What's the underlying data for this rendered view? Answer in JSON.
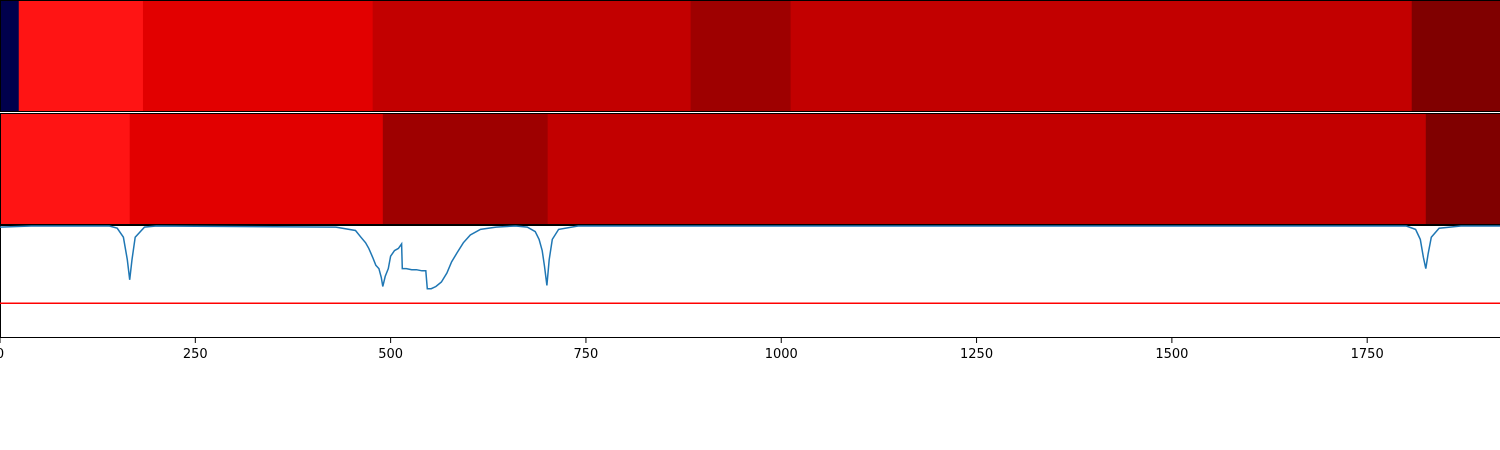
{
  "chart_data": {
    "type": "heatmap",
    "xlim": [
      0,
      1920
    ],
    "x_ticks": [
      0,
      250,
      500,
      750,
      1000,
      1250,
      1500,
      1750
    ],
    "tracks": [
      {
        "segments": [
          {
            "start": 0,
            "end": 24,
            "color": "#00004c"
          },
          {
            "start": 24,
            "end": 183,
            "color": "#ff1414"
          },
          {
            "start": 183,
            "end": 477,
            "color": "#e20000"
          },
          {
            "start": 477,
            "end": 884,
            "color": "#c20000"
          },
          {
            "start": 884,
            "end": 1012,
            "color": "#9e0000"
          },
          {
            "start": 1012,
            "end": 1807,
            "color": "#c20000"
          },
          {
            "start": 1807,
            "end": 1920,
            "color": "#800000"
          }
        ]
      },
      {
        "segments": [
          {
            "start": 0,
            "end": 166,
            "color": "#ff1414"
          },
          {
            "start": 166,
            "end": 490,
            "color": "#e20000"
          },
          {
            "start": 490,
            "end": 701,
            "color": "#9e0000"
          },
          {
            "start": 701,
            "end": 1825,
            "color": "#c20000"
          },
          {
            "start": 1825,
            "end": 1920,
            "color": "#800000"
          }
        ]
      }
    ],
    "line_panel": {
      "ylim": [
        0,
        1
      ],
      "threshold": 0.31,
      "threshold_color": "#ff0000",
      "line_color": "#1f77b4",
      "points": [
        [
          0,
          0.99
        ],
        [
          40,
          1.0
        ],
        [
          140,
          1.0
        ],
        [
          150,
          0.98
        ],
        [
          158,
          0.9
        ],
        [
          163,
          0.7
        ],
        [
          166,
          0.52
        ],
        [
          169,
          0.7
        ],
        [
          173,
          0.9
        ],
        [
          185,
          0.99
        ],
        [
          200,
          1.0
        ],
        [
          430,
          0.99
        ],
        [
          455,
          0.96
        ],
        [
          462,
          0.9
        ],
        [
          468,
          0.85
        ],
        [
          472,
          0.8
        ],
        [
          477,
          0.72
        ],
        [
          481,
          0.65
        ],
        [
          485,
          0.62
        ],
        [
          488,
          0.54
        ],
        [
          490,
          0.46
        ],
        [
          493,
          0.55
        ],
        [
          497,
          0.62
        ],
        [
          500,
          0.73
        ],
        [
          505,
          0.78
        ],
        [
          510,
          0.8
        ],
        [
          512,
          0.82
        ],
        [
          514,
          0.84
        ],
        [
          515,
          0.62
        ],
        [
          520,
          0.62
        ],
        [
          527,
          0.61
        ],
        [
          533,
          0.61
        ],
        [
          540,
          0.6
        ],
        [
          545,
          0.6
        ],
        [
          547,
          0.44
        ],
        [
          552,
          0.44
        ],
        [
          558,
          0.46
        ],
        [
          565,
          0.5
        ],
        [
          572,
          0.58
        ],
        [
          578,
          0.68
        ],
        [
          585,
          0.76
        ],
        [
          593,
          0.85
        ],
        [
          602,
          0.92
        ],
        [
          615,
          0.97
        ],
        [
          635,
          0.99
        ],
        [
          660,
          1.0
        ],
        [
          675,
          0.99
        ],
        [
          685,
          0.95
        ],
        [
          690,
          0.88
        ],
        [
          694,
          0.78
        ],
        [
          697,
          0.64
        ],
        [
          700,
          0.47
        ],
        [
          703,
          0.7
        ],
        [
          707,
          0.88
        ],
        [
          715,
          0.97
        ],
        [
          740,
          1.0
        ],
        [
          1800,
          1.0
        ],
        [
          1812,
          0.97
        ],
        [
          1818,
          0.88
        ],
        [
          1822,
          0.72
        ],
        [
          1825,
          0.62
        ],
        [
          1828,
          0.75
        ],
        [
          1832,
          0.9
        ],
        [
          1842,
          0.98
        ],
        [
          1870,
          1.0
        ],
        [
          1920,
          1.0
        ]
      ]
    }
  }
}
